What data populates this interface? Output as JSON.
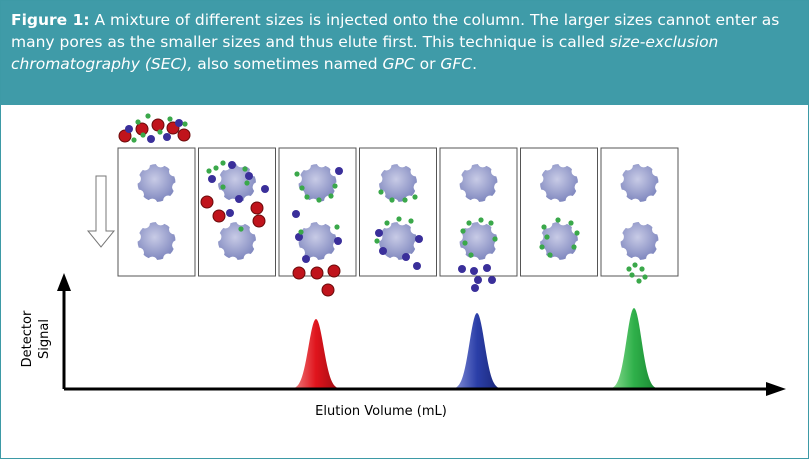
{
  "caption": {
    "label": "Figure 1:",
    "text_1": " A mixture of different sizes is injected onto the column. The larger sizes cannot enter as many pores as the smaller sizes and thus elute first. This technique is called ",
    "italic_1": "size-exclusion chromatography (SEC),",
    "text_2": " also sometimes named ",
    "italic_2": "GPC",
    "text_3": " or ",
    "italic_3": "GFC",
    "text_4": "."
  },
  "diagram": {
    "y_axis_label_1": "Detector",
    "y_axis_label_2": "Signal",
    "x_axis_label": "Elution Volume (mL)"
  }
}
